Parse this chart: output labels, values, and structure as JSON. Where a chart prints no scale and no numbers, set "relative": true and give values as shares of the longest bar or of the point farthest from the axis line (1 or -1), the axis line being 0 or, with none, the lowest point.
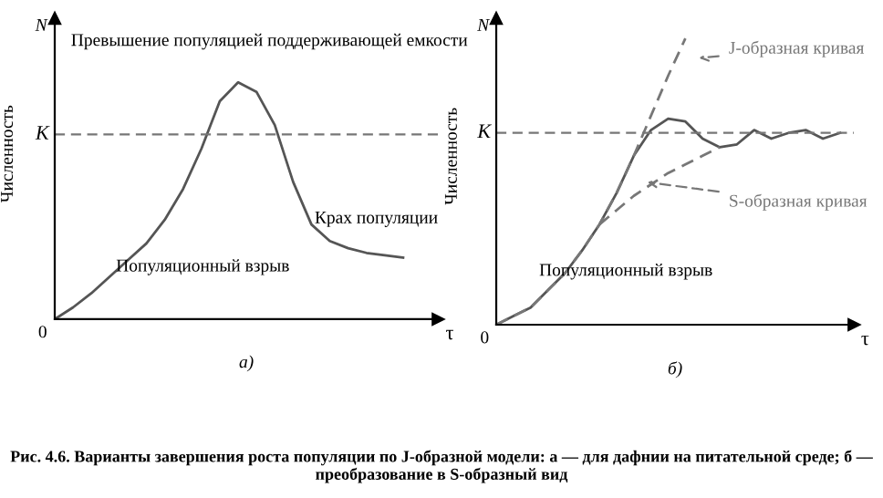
{
  "chart_data": [
    {
      "type": "line",
      "relative": true,
      "title": "а)",
      "xlabel": "τ",
      "ylabel": "Численность",
      "categories": [
        null,
        null,
        null,
        null,
        null,
        null,
        null,
        null,
        null,
        null,
        null,
        null,
        null,
        null,
        null,
        null,
        null,
        null,
        null,
        null
      ],
      "series": [
        {
          "color": "#555555",
          "line_style": "solid",
          "values": [
            0,
            0.05,
            0.11,
            0.18,
            0.25,
            0.32,
            0.42,
            0.55,
            0.72,
            0.92,
            1.0,
            0.96,
            0.82,
            0.58,
            0.4,
            0.33,
            0.3,
            0.28,
            0.27,
            0.26
          ]
        }
      ],
      "ref_lines": [
        {
          "axis": "y",
          "value": 0.78,
          "label": "K",
          "color": "#777777",
          "line_style": "dashed"
        }
      ],
      "annotations": [
        "N",
        "0",
        "Превышение популяцией поддерживающей емкости",
        "Крах популяции",
        "Популяционный взрыв",
        "Рис. 4.6. Варианты завершения роста популяции по J-образной модели: а — для дафнии на питательной среде; б — преобразование в S-образный вид"
      ],
      "marker": "none"
    },
    {
      "type": "line",
      "relative": true,
      "title": "б)",
      "xlabel": "τ",
      "ylabel": "Численность",
      "categories": [
        null,
        null,
        null,
        null,
        null,
        null,
        null,
        null,
        null,
        null,
        null,
        null,
        null,
        null,
        null,
        null,
        null,
        null,
        null,
        null,
        null
      ],
      "series": [
        {
          "color": "#555555",
          "line_style": "solid",
          "values": [
            0,
            0.03,
            0.06,
            0.12,
            0.18,
            0.26,
            0.35,
            0.46,
            0.59,
            0.68,
            0.72,
            0.71,
            0.65,
            0.62,
            0.63,
            0.68,
            0.65,
            0.67,
            0.68,
            0.65,
            0.67
          ]
        },
        {
          "name": "J-образная кривая",
          "color": "#777777",
          "line_style": "dashed",
          "values": [
            0,
            0.03,
            0.06,
            0.12,
            0.18,
            0.26,
            0.35,
            0.46,
            0.59,
            0.73,
            0.87,
            1.0,
            null,
            null,
            null,
            null,
            null,
            null,
            null,
            null,
            null
          ]
        },
        {
          "name": "S-образная кривая",
          "color": "#777777",
          "line_style": "dashed",
          "values": [
            null,
            null,
            null,
            null,
            null,
            null,
            0.35,
            0.4,
            0.45,
            0.49,
            0.53,
            0.56,
            0.59,
            0.62,
            null,
            null,
            null,
            null,
            null,
            null,
            null
          ]
        }
      ],
      "ref_lines": [
        {
          "axis": "y",
          "value": 0.67,
          "label": "K",
          "color": "#777777",
          "line_style": "dashed"
        }
      ],
      "annotations": [
        "N",
        "0",
        "Популяционный взрыв"
      ],
      "legend": "right",
      "marker": "none"
    }
  ]
}
